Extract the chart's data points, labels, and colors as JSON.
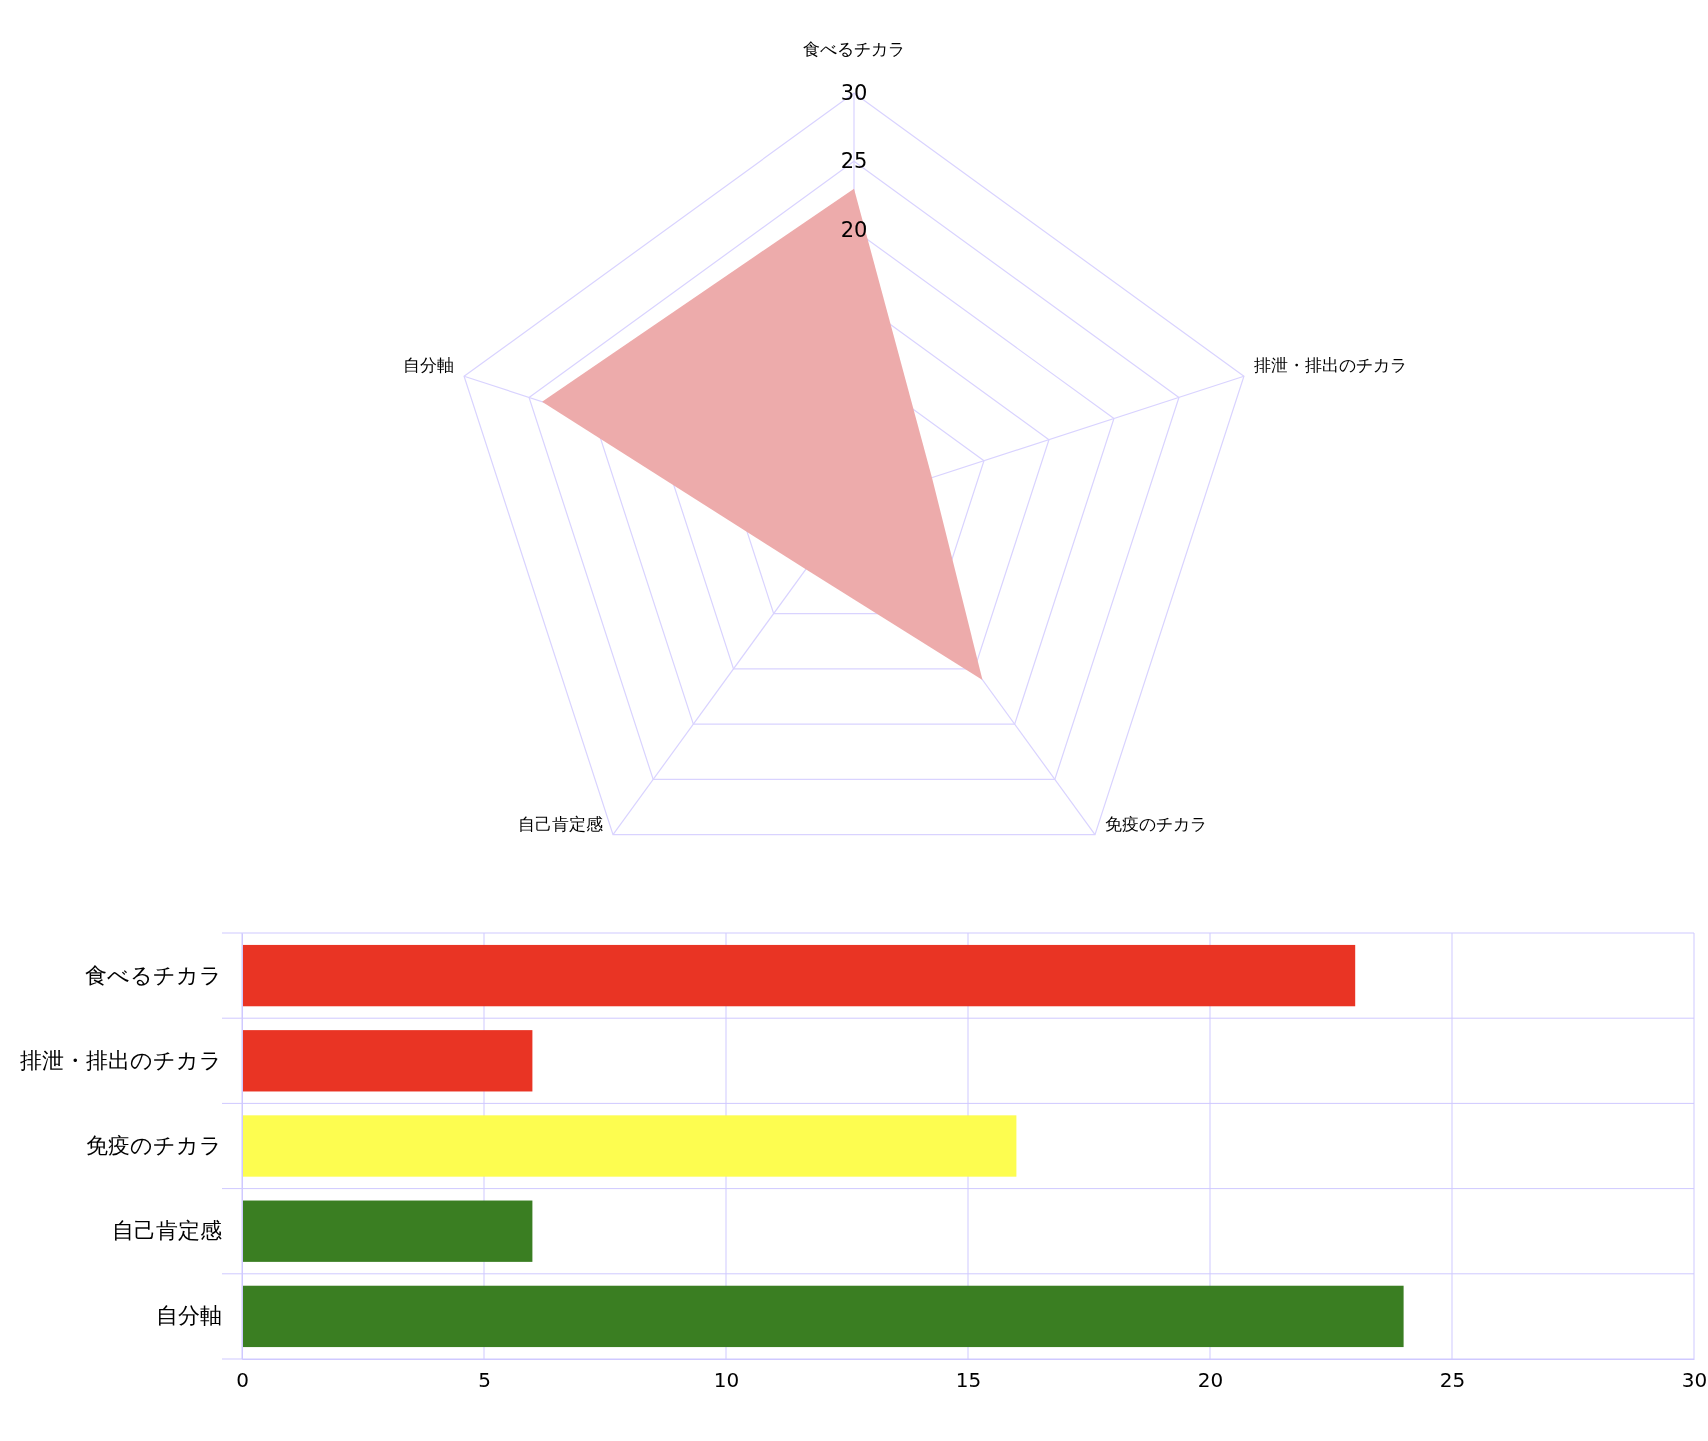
{
  "chart_data": [
    {
      "type": "radar",
      "categories": [
        "食べるチカラ",
        "排泄・排出のチカラ",
        "免疫のチカラ",
        "自己肯定感",
        "自分軸"
      ],
      "series": [
        {
          "color": "#edabab",
          "values": [
            23,
            6,
            16,
            6,
            24
          ]
        }
      ],
      "ylim": [
        0,
        30
      ],
      "yticks": [
        20,
        25,
        30
      ],
      "grid": true
    },
    {
      "type": "bar",
      "orientation": "horizontal",
      "categories": [
        "食べるチカラ",
        "排泄・排出のチカラ",
        "免疫のチカラ",
        "自己肯定感",
        "自分軸"
      ],
      "values": [
        23,
        6,
        16,
        6,
        24
      ],
      "colors": [
        "#e93424",
        "#e93424",
        "#fdfd50",
        "#3a7e22",
        "#3a7e22"
      ],
      "xlim": [
        0,
        30
      ],
      "xticks": [
        0,
        5,
        10,
        15,
        20,
        25,
        30
      ],
      "grid": true
    }
  ]
}
